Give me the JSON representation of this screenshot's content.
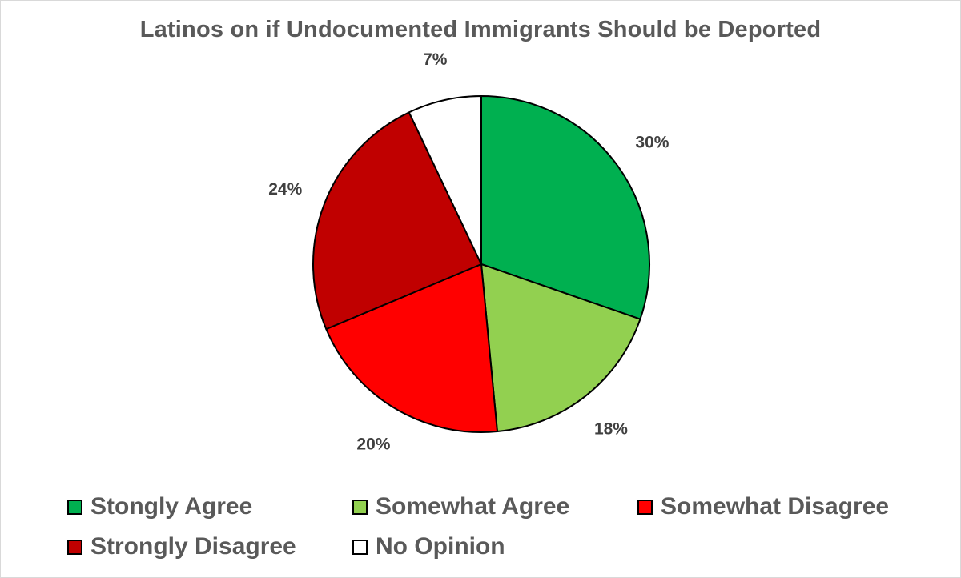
{
  "chart_data": {
    "type": "pie",
    "title": "Latinos on if Undocumented Immigrants Should be Deported",
    "legend_position": "bottom",
    "slices": [
      {
        "name": "Stongly Agree",
        "value": 30,
        "label": "30%",
        "color": "#00B050"
      },
      {
        "name": "Somewhat Agree",
        "value": 18,
        "label": "18%",
        "color": "#92D050"
      },
      {
        "name": "Somewhat Disagree",
        "value": 20,
        "label": "20%",
        "color": "#FF0000"
      },
      {
        "name": "Strongly Disagree",
        "value": 24,
        "label": "24%",
        "color": "#C00000"
      },
      {
        "name": "No Opinion",
        "value": 7,
        "label": "7%",
        "color": "#FFFFFF"
      }
    ]
  }
}
